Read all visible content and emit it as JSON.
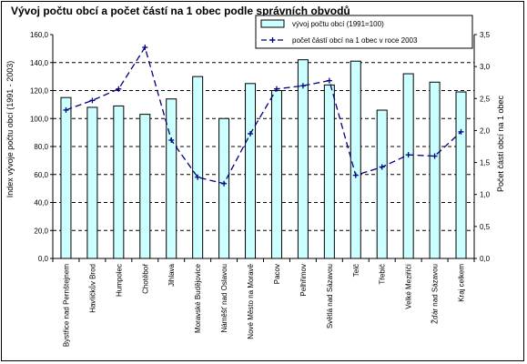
{
  "chart_data": {
    "type": "bar",
    "title": "Vývoj počtu obcí a počet částí na 1 obec podle správních obvodů",
    "categories": [
      "Bystřice nad Pernštejnem",
      "Havlíčkův Brod",
      "Humpolec",
      "Chotěboř",
      "Jihlava",
      "Moravské Budějovice",
      "Náměšť nad Oslavou",
      "Nové Město na Moravě",
      "Pacov",
      "Pelhřimov",
      "Světlá nad Sázavou",
      "Telč",
      "Třebíč",
      "Velké Meziříčí",
      "Žďár nad Sázavou",
      "Kraj celkem"
    ],
    "series": [
      {
        "name": "vývoj počtu obcí (1991=100)",
        "type": "bar",
        "axis": "left",
        "color": "#ccffff",
        "values": [
          115,
          108,
          109,
          103,
          114,
          130,
          100,
          125,
          120,
          142,
          124,
          141,
          106,
          132,
          126,
          119
        ]
      },
      {
        "name": "počet částí obcí na 1 obec v roce 2003",
        "type": "line",
        "axis": "right",
        "color": "#000080",
        "values": [
          2.32,
          2.47,
          2.65,
          3.3,
          1.85,
          1.27,
          1.17,
          1.95,
          2.65,
          2.7,
          2.78,
          1.3,
          1.43,
          1.62,
          1.6,
          1.98
        ]
      }
    ],
    "ylabel": "Index vývoje počtu obcí (1991 - 2003)",
    "y2label": "Počet částí obcí na 1 obec",
    "ylim": [
      0,
      160
    ],
    "y2lim": [
      0,
      3.5
    ],
    "yticks": [
      "0,0",
      "20,0",
      "40,0",
      "60,0",
      "80,0",
      "100,0",
      "120,0",
      "140,0",
      "160,0"
    ],
    "y2ticks": [
      "0,0",
      "0,5",
      "1,0",
      "1,5",
      "2,0",
      "2,5",
      "3,0",
      "3,5"
    ],
    "grid": true,
    "legend": "top-right"
  }
}
